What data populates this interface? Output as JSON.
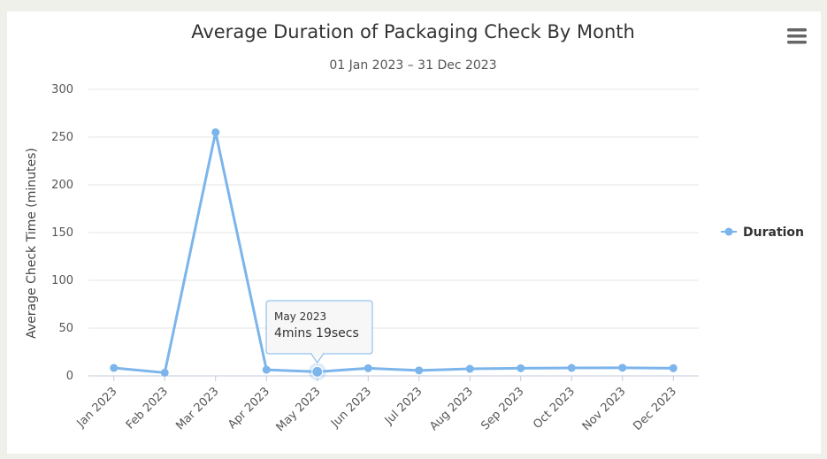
{
  "chart_data": {
    "type": "line",
    "title": "Average Duration of Packaging Check By Month",
    "subtitle": "01 Jan 2023 – 31 Dec 2023",
    "ylabel": "Average Check Time (minutes)",
    "xlabel": "",
    "ylim": [
      0,
      300
    ],
    "yticks": [
      0,
      50,
      100,
      150,
      200,
      250,
      300
    ],
    "categories": [
      "Jan 2023",
      "Feb 2023",
      "Mar 2023",
      "Apr 2023",
      "May 2023",
      "Jun 2023",
      "Jul 2023",
      "Aug 2023",
      "Sep 2023",
      "Oct 2023",
      "Nov 2023",
      "Dec 2023"
    ],
    "series": [
      {
        "name": "Duration",
        "color": "#7cb5ec",
        "values": [
          8.3,
          3.3,
          255,
          6.4,
          4.3,
          8,
          5.7,
          7.4,
          8,
          8.3,
          8.5,
          8
        ]
      }
    ],
    "grid": true,
    "legend": "right",
    "tooltip": {
      "category_index": 4,
      "title": "May 2023",
      "value": "4mins 19secs"
    }
  },
  "menu_icon": "hamburger-menu-icon"
}
